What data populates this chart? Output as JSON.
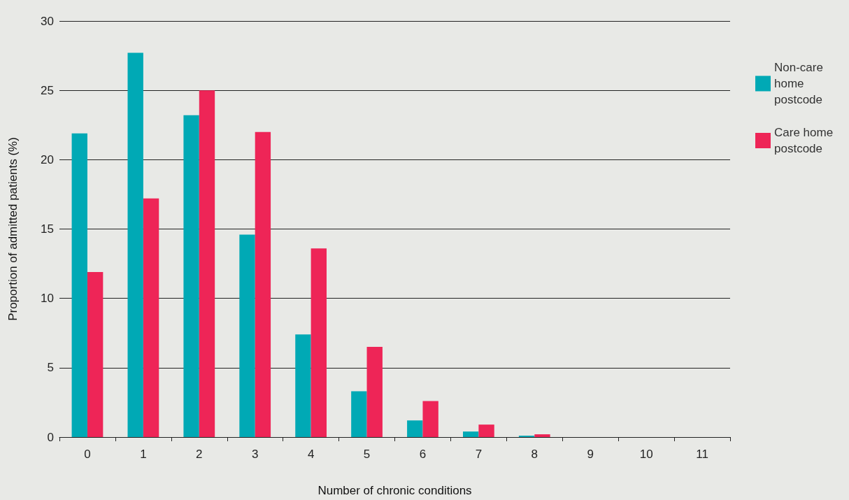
{
  "chart_data": {
    "type": "bar",
    "xlabel": "Number of chronic conditions",
    "ylabel": "Proportion of admitted patients (%)",
    "categories": [
      "0",
      "1",
      "2",
      "3",
      "4",
      "5",
      "6",
      "7",
      "8",
      "9",
      "10",
      "11"
    ],
    "series": [
      {
        "name": "Non-care home postcode",
        "color": "#00a9b5",
        "values": [
          21.9,
          27.7,
          23.2,
          14.6,
          7.4,
          3.3,
          1.2,
          0.4,
          0.1,
          0,
          0,
          0
        ]
      },
      {
        "name": "Care home postcode",
        "color": "#ee2557",
        "values": [
          11.9,
          17.2,
          25.0,
          22.0,
          13.6,
          6.5,
          2.6,
          0.9,
          0.2,
          0,
          0,
          0
        ]
      }
    ],
    "ylim": [
      0,
      30
    ],
    "yticks": [
      0,
      5,
      10,
      15,
      20,
      25,
      30
    ],
    "grid": "y",
    "legend": "top right"
  }
}
